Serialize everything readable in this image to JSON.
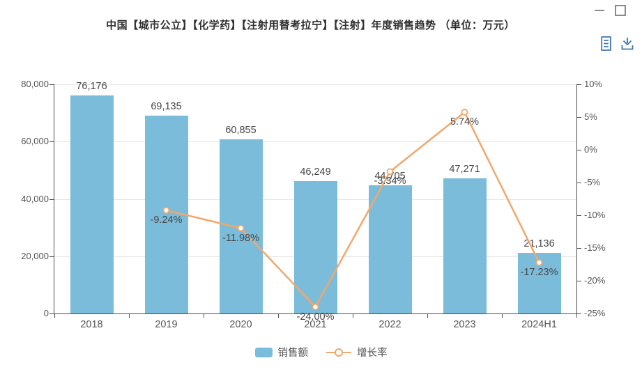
{
  "title": "中国【城市公立】【化学药】【注射用替考拉宁】【注射】年度销售趋势 （单位：万元）",
  "window": {
    "controls": [
      "minimize",
      "maximize"
    ]
  },
  "toolbar": {
    "tools": [
      "data-view-icon",
      "download-icon"
    ]
  },
  "colors": {
    "bar": "#7bbcdb",
    "line": "#f2a76b",
    "axis": "#4c4c4c",
    "grid": "#e6e6e6",
    "value_label": "#474747",
    "tick_label": "#555555",
    "toolbar_icon": "#3a74ad",
    "window_control": "#8a8a8a"
  },
  "chart_data": {
    "type": "bar",
    "title": "中国【城市公立】【化学药】【注射用替考拉宁】【注射】年度销售趋势 （单位：万元）",
    "categories": [
      "2018",
      "2019",
      "2020",
      "2021",
      "2022",
      "2023",
      "2024H1"
    ],
    "series": [
      {
        "name": "销售额",
        "type": "bar",
        "unit": "万元",
        "values": [
          76176,
          69135,
          60855,
          46249,
          44705,
          47271,
          21136
        ],
        "labels": [
          "76,176",
          "69,135",
          "60,855",
          "46,249",
          "44,705",
          "47,271",
          "21,136"
        ]
      },
      {
        "name": "增长率",
        "type": "line",
        "unit": "%",
        "values": [
          null,
          -9.24,
          -11.98,
          -24.0,
          -3.34,
          5.74,
          -17.23
        ],
        "labels": [
          null,
          "-9.24%",
          "-11.98%",
          "-24.00%",
          "-3.34%",
          "5.74%",
          "-17.23%"
        ]
      }
    ],
    "y_axis_left": {
      "min": 0,
      "max": 80000,
      "ticks": [
        "80,000",
        "60,000",
        "40,000",
        "20,000",
        "0"
      ]
    },
    "y_axis_right": {
      "min": -25,
      "max": 10,
      "ticks": [
        "10%",
        "5%",
        "0%",
        "-5%",
        "-10%",
        "-15%",
        "-20%",
        "-25%"
      ]
    },
    "legend": {
      "position": "bottom",
      "items": [
        "销售额",
        "增长率"
      ]
    },
    "grid": true
  }
}
